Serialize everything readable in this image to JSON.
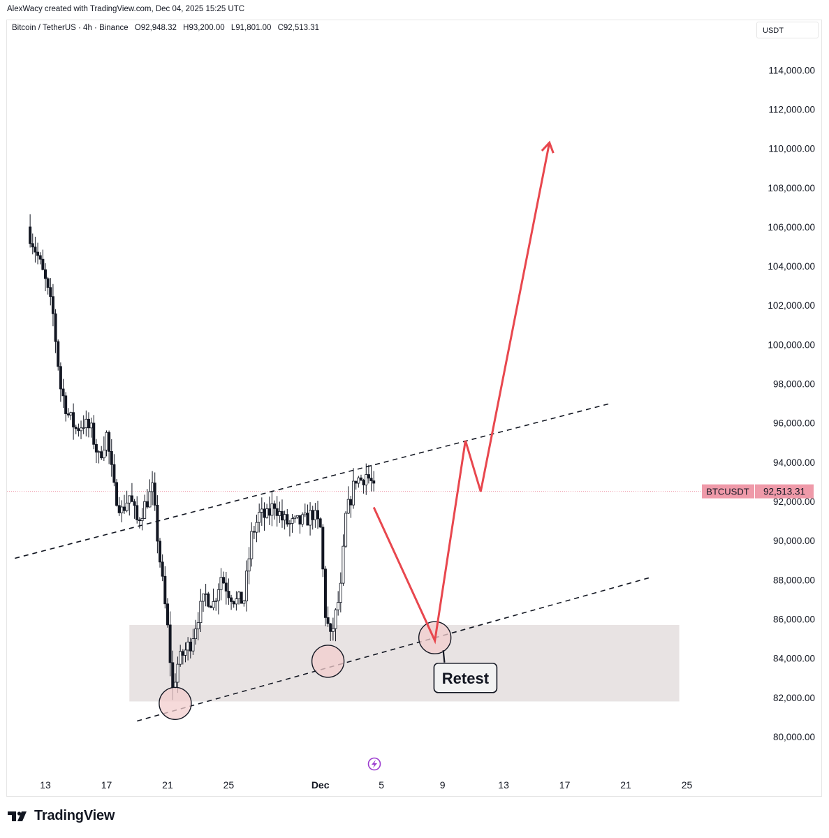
{
  "header": {
    "attribution": "AlexWacy created with TradingView.com, Dec 04, 2025 15:25 UTC",
    "symbol": "Bitcoin / TetherUS · 4h · Binance",
    "open": "O92,948.32",
    "high": "H93,200.00",
    "low": "L91,801.00",
    "close": "C92,513.31",
    "currency": "USDT"
  },
  "footer": {
    "brand": "TradingView"
  },
  "colors": {
    "candle": "#131722",
    "projection": "#e8474e",
    "zone": "#e4dede",
    "circle_fill": "#f3cdcd",
    "price_tag": "#ef9aa9",
    "dashed": "#131722"
  },
  "chart_data": {
    "type": "candlestick",
    "title": "Bitcoin / TetherUS · 4h · Binance",
    "ylim": [
      79000,
      116000
    ],
    "y_ticks": [
      "80,000.00",
      "82,000.00",
      "84,000.00",
      "86,000.00",
      "88,000.00",
      "90,000.00",
      "92,000.00",
      "94,000.00",
      "96,000.00",
      "98,000.00",
      "100,000.00",
      "102,000.00",
      "104,000.00",
      "106,000.00",
      "108,000.00",
      "110,000.00",
      "112,000.00",
      "114,000.00"
    ],
    "x_ticks": [
      {
        "label": "13",
        "date": "2025-11-13",
        "bold": false
      },
      {
        "label": "17",
        "date": "2025-11-17",
        "bold": false
      },
      {
        "label": "21",
        "date": "2025-11-21",
        "bold": false
      },
      {
        "label": "25",
        "date": "2025-11-25",
        "bold": false
      },
      {
        "label": "Dec",
        "date": "2025-12-01",
        "bold": true
      },
      {
        "label": "5",
        "date": "2025-12-05",
        "bold": false
      },
      {
        "label": "9",
        "date": "2025-12-09",
        "bold": false
      },
      {
        "label": "13",
        "date": "2025-12-13",
        "bold": false
      },
      {
        "label": "17",
        "date": "2025-12-17",
        "bold": false
      },
      {
        "label": "21",
        "date": "2025-12-21",
        "bold": false
      },
      {
        "label": "25",
        "date": "2025-12-25",
        "bold": false
      }
    ],
    "price_line": {
      "label": "BTCUSDT",
      "value_text": "92,513.31",
      "value": 92513.31
    },
    "close_path": [
      [
        "2025-11-12 00:00",
        105600
      ],
      [
        "2025-11-12 12:00",
        104500
      ],
      [
        "2025-11-13 00:00",
        103200
      ],
      [
        "2025-11-13 12:00",
        101500
      ],
      [
        "2025-11-14 00:00",
        97800
      ],
      [
        "2025-11-14 12:00",
        96400
      ],
      [
        "2025-11-15 00:00",
        95700
      ],
      [
        "2025-11-15 12:00",
        96000
      ],
      [
        "2025-11-16 00:00",
        95600
      ],
      [
        "2025-11-16 12:00",
        94200
      ],
      [
        "2025-11-17 00:00",
        95400
      ],
      [
        "2025-11-17 12:00",
        92600
      ],
      [
        "2025-11-18 00:00",
        91500
      ],
      [
        "2025-11-18 12:00",
        92300
      ],
      [
        "2025-11-19 00:00",
        91000
      ],
      [
        "2025-11-19 12:00",
        91800
      ],
      [
        "2025-11-20 00:00",
        92600
      ],
      [
        "2025-11-20 12:00",
        89000
      ],
      [
        "2025-11-21 00:00",
        85500
      ],
      [
        "2025-11-21 08:00",
        82400
      ],
      [
        "2025-11-21 16:00",
        83700
      ],
      [
        "2025-11-22 00:00",
        84200
      ],
      [
        "2025-11-22 12:00",
        84800
      ],
      [
        "2025-11-23 00:00",
        86200
      ],
      [
        "2025-11-23 12:00",
        87200
      ],
      [
        "2025-11-24 00:00",
        86800
      ],
      [
        "2025-11-24 12:00",
        88200
      ],
      [
        "2025-11-25 00:00",
        87400
      ],
      [
        "2025-11-25 12:00",
        86900
      ],
      [
        "2025-11-26 00:00",
        87000
      ],
      [
        "2025-11-26 12:00",
        90200
      ],
      [
        "2025-11-27 00:00",
        91300
      ],
      [
        "2025-11-27 12:00",
        91200
      ],
      [
        "2025-11-28 00:00",
        91900
      ],
      [
        "2025-11-28 12:00",
        91100
      ],
      [
        "2025-11-29 00:00",
        90800
      ],
      [
        "2025-11-29 12:00",
        90900
      ],
      [
        "2025-11-30 00:00",
        91000
      ],
      [
        "2025-11-30 12:00",
        91400
      ],
      [
        "2025-12-01 00:00",
        90600
      ],
      [
        "2025-12-01 08:00",
        86300
      ],
      [
        "2025-12-01 16:00",
        85000
      ],
      [
        "2025-12-02 00:00",
        86200
      ],
      [
        "2025-12-02 08:00",
        87500
      ],
      [
        "2025-12-02 16:00",
        91200
      ],
      [
        "2025-12-03 00:00",
        92200
      ],
      [
        "2025-12-03 08:00",
        93200
      ],
      [
        "2025-12-03 16:00",
        93100
      ],
      [
        "2025-12-04 00:00",
        93400
      ],
      [
        "2025-12-04 08:00",
        92950
      ],
      [
        "2025-12-04 12:00",
        92513
      ]
    ],
    "support_zone": {
      "from": "2025-11-18 12:00",
      "to": "2025-12-24 12:00",
      "low": 81800,
      "high": 85700
    },
    "upper_trendline": [
      [
        "2025-11-11 00:00",
        89100
      ],
      [
        "2025-12-20 00:00",
        97000
      ]
    ],
    "lower_trendline": [
      [
        "2025-11-19 00:00",
        80800
      ],
      [
        "2025-12-22 12:00",
        88100
      ]
    ],
    "circles": [
      {
        "date": "2025-11-21 12:00",
        "value": 81700
      },
      {
        "date": "2025-12-01 12:00",
        "value": 83850
      },
      {
        "date": "2025-12-08 12:00",
        "value": 85050
      }
    ],
    "projection": [
      [
        "2025-12-04 12:00",
        91700
      ],
      [
        "2025-12-08 12:00",
        84900
      ],
      [
        "2025-12-10 12:00",
        95100
      ],
      [
        "2025-12-11 12:00",
        92500
      ],
      [
        "2025-12-16 00:00",
        110300
      ]
    ],
    "annotation": {
      "text": "Retest",
      "date": "2025-12-10 12:00",
      "value": 83000
    }
  }
}
